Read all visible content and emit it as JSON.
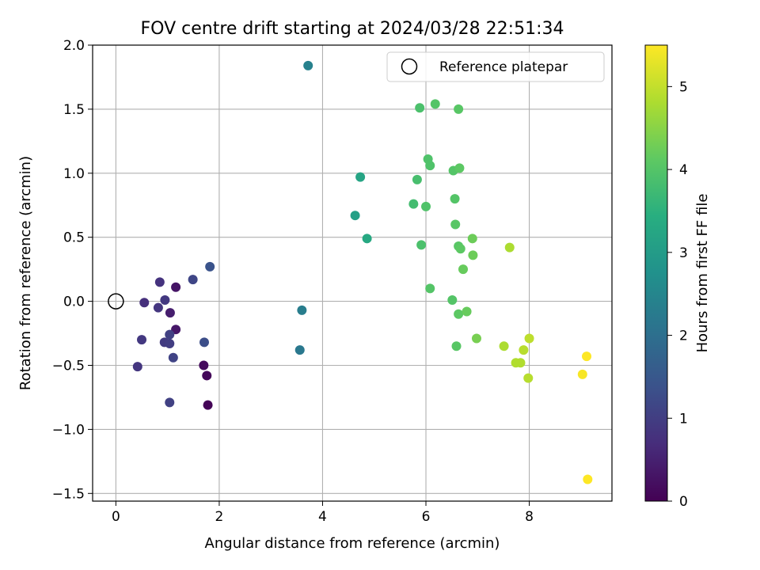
{
  "chart_data": {
    "type": "scatter",
    "title": "FOV centre drift starting at 2024/03/28 22:51:34",
    "xlabel": "Angular distance from reference (arcmin)",
    "ylabel": "Rotation from reference (arcmin)",
    "xlim": [
      -0.45,
      9.6
    ],
    "ylim": [
      -1.56,
      2.0
    ],
    "xticks": [
      0,
      2,
      4,
      6,
      8
    ],
    "xtick_labels": [
      "0",
      "2",
      "4",
      "6",
      "8"
    ],
    "yticks": [
      -1.5,
      -1.0,
      -0.5,
      0.0,
      0.5,
      1.0,
      1.5,
      2.0
    ],
    "ytick_labels": [
      "−1.5",
      "−1.0",
      "−0.5",
      "0.0",
      "0.5",
      "1.0",
      "1.5",
      "2.0"
    ],
    "grid": true,
    "legend": {
      "label": "Reference platepar",
      "placement": "top-right"
    },
    "reference_point": {
      "x": 0,
      "y": 0
    },
    "colorbar": {
      "label": "Hours from first FF file",
      "colormap": "viridis",
      "range": [
        0,
        5.5
      ],
      "ticks": [
        0,
        1,
        2,
        3,
        4,
        5
      ],
      "tick_labels": [
        "0",
        "1",
        "2",
        "3",
        "4",
        "5"
      ]
    },
    "points": [
      {
        "x": 1.78,
        "y": -0.81,
        "c": 0.05
      },
      {
        "x": 1.76,
        "y": -0.58,
        "c": 0.1
      },
      {
        "x": 1.7,
        "y": -0.5,
        "c": 0.15
      },
      {
        "x": 1.16,
        "y": -0.22,
        "c": 0.35
      },
      {
        "x": 1.16,
        "y": 0.11,
        "c": 0.3
      },
      {
        "x": 1.05,
        "y": -0.09,
        "c": 0.45
      },
      {
        "x": 0.55,
        "y": -0.01,
        "c": 0.75
      },
      {
        "x": 0.82,
        "y": -0.05,
        "c": 0.85
      },
      {
        "x": 0.95,
        "y": 0.01,
        "c": 0.9
      },
      {
        "x": 0.85,
        "y": 0.15,
        "c": 0.8
      },
      {
        "x": 0.42,
        "y": -0.51,
        "c": 0.85
      },
      {
        "x": 0.5,
        "y": -0.3,
        "c": 0.9
      },
      {
        "x": 0.94,
        "y": -0.32,
        "c": 0.95
      },
      {
        "x": 1.04,
        "y": -0.33,
        "c": 1.0
      },
      {
        "x": 1.04,
        "y": -0.26,
        "c": 1.05
      },
      {
        "x": 1.11,
        "y": -0.44,
        "c": 1.1
      },
      {
        "x": 1.04,
        "y": -0.79,
        "c": 1.05
      },
      {
        "x": 1.49,
        "y": 0.17,
        "c": 1.15
      },
      {
        "x": 1.71,
        "y": -0.32,
        "c": 1.3
      },
      {
        "x": 1.82,
        "y": 0.27,
        "c": 1.4
      },
      {
        "x": 3.56,
        "y": -0.38,
        "c": 2.2
      },
      {
        "x": 3.6,
        "y": -0.07,
        "c": 2.3
      },
      {
        "x": 3.72,
        "y": 1.84,
        "c": 2.4
      },
      {
        "x": 4.63,
        "y": 0.67,
        "c": 3.1
      },
      {
        "x": 4.73,
        "y": 0.97,
        "c": 3.2
      },
      {
        "x": 4.86,
        "y": 0.49,
        "c": 3.3
      },
      {
        "x": 5.76,
        "y": 0.76,
        "c": 3.8
      },
      {
        "x": 5.83,
        "y": 0.95,
        "c": 3.85
      },
      {
        "x": 5.88,
        "y": 1.51,
        "c": 3.9
      },
      {
        "x": 5.91,
        "y": 0.44,
        "c": 3.9
      },
      {
        "x": 6.0,
        "y": 0.74,
        "c": 3.95
      },
      {
        "x": 6.04,
        "y": 1.11,
        "c": 3.95
      },
      {
        "x": 6.08,
        "y": 1.06,
        "c": 3.95
      },
      {
        "x": 6.08,
        "y": 0.1,
        "c": 4.0
      },
      {
        "x": 6.18,
        "y": 1.54,
        "c": 4.0
      },
      {
        "x": 6.51,
        "y": 0.01,
        "c": 4.0
      },
      {
        "x": 6.53,
        "y": 1.02,
        "c": 4.0
      },
      {
        "x": 6.56,
        "y": 0.8,
        "c": 4.0
      },
      {
        "x": 6.57,
        "y": 0.6,
        "c": 4.05
      },
      {
        "x": 6.59,
        "y": -0.35,
        "c": 4.05
      },
      {
        "x": 6.63,
        "y": 1.5,
        "c": 4.05
      },
      {
        "x": 6.63,
        "y": 0.43,
        "c": 4.05
      },
      {
        "x": 6.63,
        "y": -0.1,
        "c": 4.1
      },
      {
        "x": 6.65,
        "y": 1.04,
        "c": 4.1
      },
      {
        "x": 6.67,
        "y": 0.41,
        "c": 4.1
      },
      {
        "x": 6.72,
        "y": 0.25,
        "c": 4.2
      },
      {
        "x": 6.79,
        "y": -0.08,
        "c": 4.2
      },
      {
        "x": 6.9,
        "y": 0.49,
        "c": 4.25
      },
      {
        "x": 6.91,
        "y": 0.36,
        "c": 4.25
      },
      {
        "x": 6.98,
        "y": -0.29,
        "c": 4.35
      },
      {
        "x": 7.62,
        "y": 0.42,
        "c": 4.8
      },
      {
        "x": 7.51,
        "y": -0.35,
        "c": 4.8
      },
      {
        "x": 7.74,
        "y": -0.48,
        "c": 4.85
      },
      {
        "x": 7.83,
        "y": -0.48,
        "c": 4.85
      },
      {
        "x": 7.89,
        "y": -0.38,
        "c": 4.9
      },
      {
        "x": 8.0,
        "y": -0.29,
        "c": 4.95
      },
      {
        "x": 7.98,
        "y": -0.6,
        "c": 4.9
      },
      {
        "x": 9.03,
        "y": -0.57,
        "c": 5.45
      },
      {
        "x": 9.11,
        "y": -0.43,
        "c": 5.5
      },
      {
        "x": 9.13,
        "y": -1.39,
        "c": 5.5
      }
    ]
  }
}
